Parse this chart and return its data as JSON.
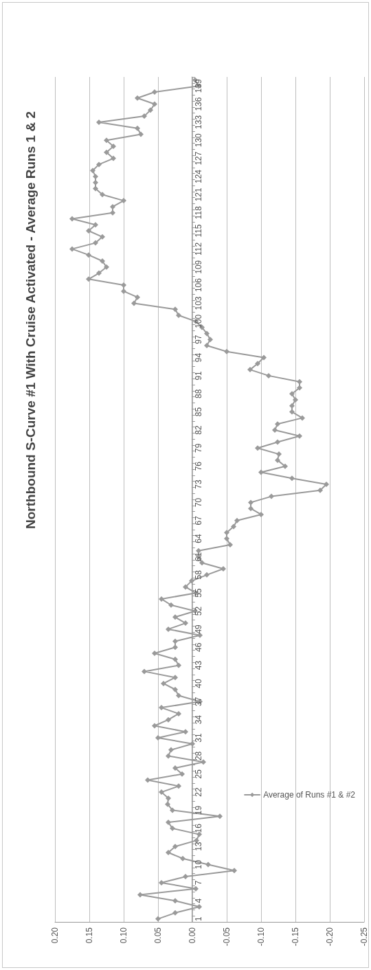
{
  "chart_data": {
    "type": "line",
    "title": "Northbound S-Curve #1 With Cruise Activated - Average Runs 1 & 2",
    "categories": [
      null,
      "139",
      null,
      null,
      "136",
      null,
      null,
      "133",
      null,
      null,
      "130",
      null,
      null,
      "127",
      null,
      null,
      "124",
      null,
      null,
      "121",
      null,
      null,
      "118",
      null,
      null,
      "115",
      null,
      null,
      "112",
      null,
      null,
      "109",
      null,
      null,
      "106",
      null,
      null,
      "103",
      null,
      null,
      "100",
      null,
      null,
      "97",
      null,
      null,
      "94",
      null,
      null,
      "91",
      null,
      null,
      "88",
      null,
      null,
      "85",
      null,
      null,
      "82",
      null,
      null,
      "79",
      null,
      null,
      "76",
      null,
      null,
      "73",
      null,
      null,
      "70",
      null,
      null,
      "67",
      null,
      null,
      "64",
      null,
      null,
      "61",
      null,
      null,
      "58",
      null,
      null,
      "55",
      null,
      null,
      "52",
      null,
      null,
      "49",
      null,
      null,
      "46",
      null,
      null,
      "43",
      null,
      null,
      "40",
      null,
      null,
      "37",
      null,
      null,
      "34",
      null,
      null,
      "31",
      null,
      null,
      "28",
      null,
      null,
      "25",
      null,
      null,
      "22",
      null,
      null,
      "19",
      null,
      null,
      "16",
      null,
      null,
      "13",
      null,
      null,
      "10",
      null,
      null,
      "7",
      null,
      null,
      "4",
      null,
      null,
      "1"
    ],
    "series": [
      {
        "name": "Average of Runs #1 & #2",
        "color": "#9a9a9a",
        "values": [
          -0.004,
          -0.009,
          0.055,
          0.08,
          0.055,
          0.061,
          0.07,
          0.136,
          0.08,
          0.075,
          0.125,
          0.115,
          0.125,
          0.115,
          0.136,
          0.145,
          0.141,
          0.141,
          0.141,
          0.131,
          0.1,
          0.116,
          0.116,
          0.175,
          0.141,
          0.151,
          0.131,
          0.141,
          0.175,
          0.151,
          0.131,
          0.125,
          0.136,
          0.151,
          0.1,
          0.1,
          0.08,
          0.085,
          0.025,
          0.02,
          -0.005,
          -0.014,
          -0.021,
          -0.026,
          -0.021,
          -0.05,
          -0.104,
          -0.095,
          -0.084,
          -0.111,
          -0.156,
          -0.156,
          -0.145,
          -0.15,
          -0.145,
          -0.145,
          -0.16,
          -0.124,
          -0.12,
          -0.156,
          -0.124,
          -0.095,
          -0.126,
          -0.124,
          -0.135,
          -0.1,
          -0.145,
          -0.195,
          -0.186,
          -0.115,
          -0.085,
          -0.085,
          -0.1,
          -0.065,
          -0.06,
          -0.05,
          -0.05,
          -0.055,
          -0.009,
          -0.009,
          -0.014,
          -0.045,
          -0.021,
          0.001,
          0.01,
          -0.005,
          0.045,
          0.031,
          -0.004,
          0.025,
          0.01,
          0.035,
          -0.011,
          0.025,
          0.025,
          0.055,
          0.025,
          0.02,
          0.07,
          0.025,
          0.042,
          0.025,
          0.02,
          -0.011,
          0.045,
          0.02,
          0.035,
          0.055,
          0.01,
          0.05,
          0.0,
          0.031,
          0.035,
          -0.016,
          0.025,
          0.015,
          0.065,
          0.02,
          0.045,
          0.035,
          0.036,
          0.029,
          -0.04,
          0.035,
          0.029,
          -0.01,
          -0.006,
          0.025,
          0.035,
          0.014,
          -0.023,
          -0.061,
          0.01,
          0.045,
          -0.005,
          0.076,
          0.025,
          -0.01,
          0.025,
          0.05
        ]
      }
    ],
    "orientation": "horizontal",
    "xlim": [
      0.2,
      -0.25
    ],
    "xticks": [
      {
        "value": -0.25,
        "label": "-0.25"
      },
      {
        "value": -0.2,
        "label": "-0.20"
      },
      {
        "value": -0.15,
        "label": "-0.15"
      },
      {
        "value": -0.1,
        "label": "-0.10"
      },
      {
        "value": -0.05,
        "label": "-0.05"
      },
      {
        "value": 0,
        "label": "0.00"
      },
      {
        "value": 0.05,
        "label": "0.05"
      },
      {
        "value": 0.1,
        "label": "0.10"
      },
      {
        "value": 0.15,
        "label": "0.15"
      },
      {
        "value": 0.2,
        "label": "0.20"
      }
    ],
    "grid": "x",
    "legend": "bottom",
    "marker": "diamond",
    "line_style": "solid"
  }
}
